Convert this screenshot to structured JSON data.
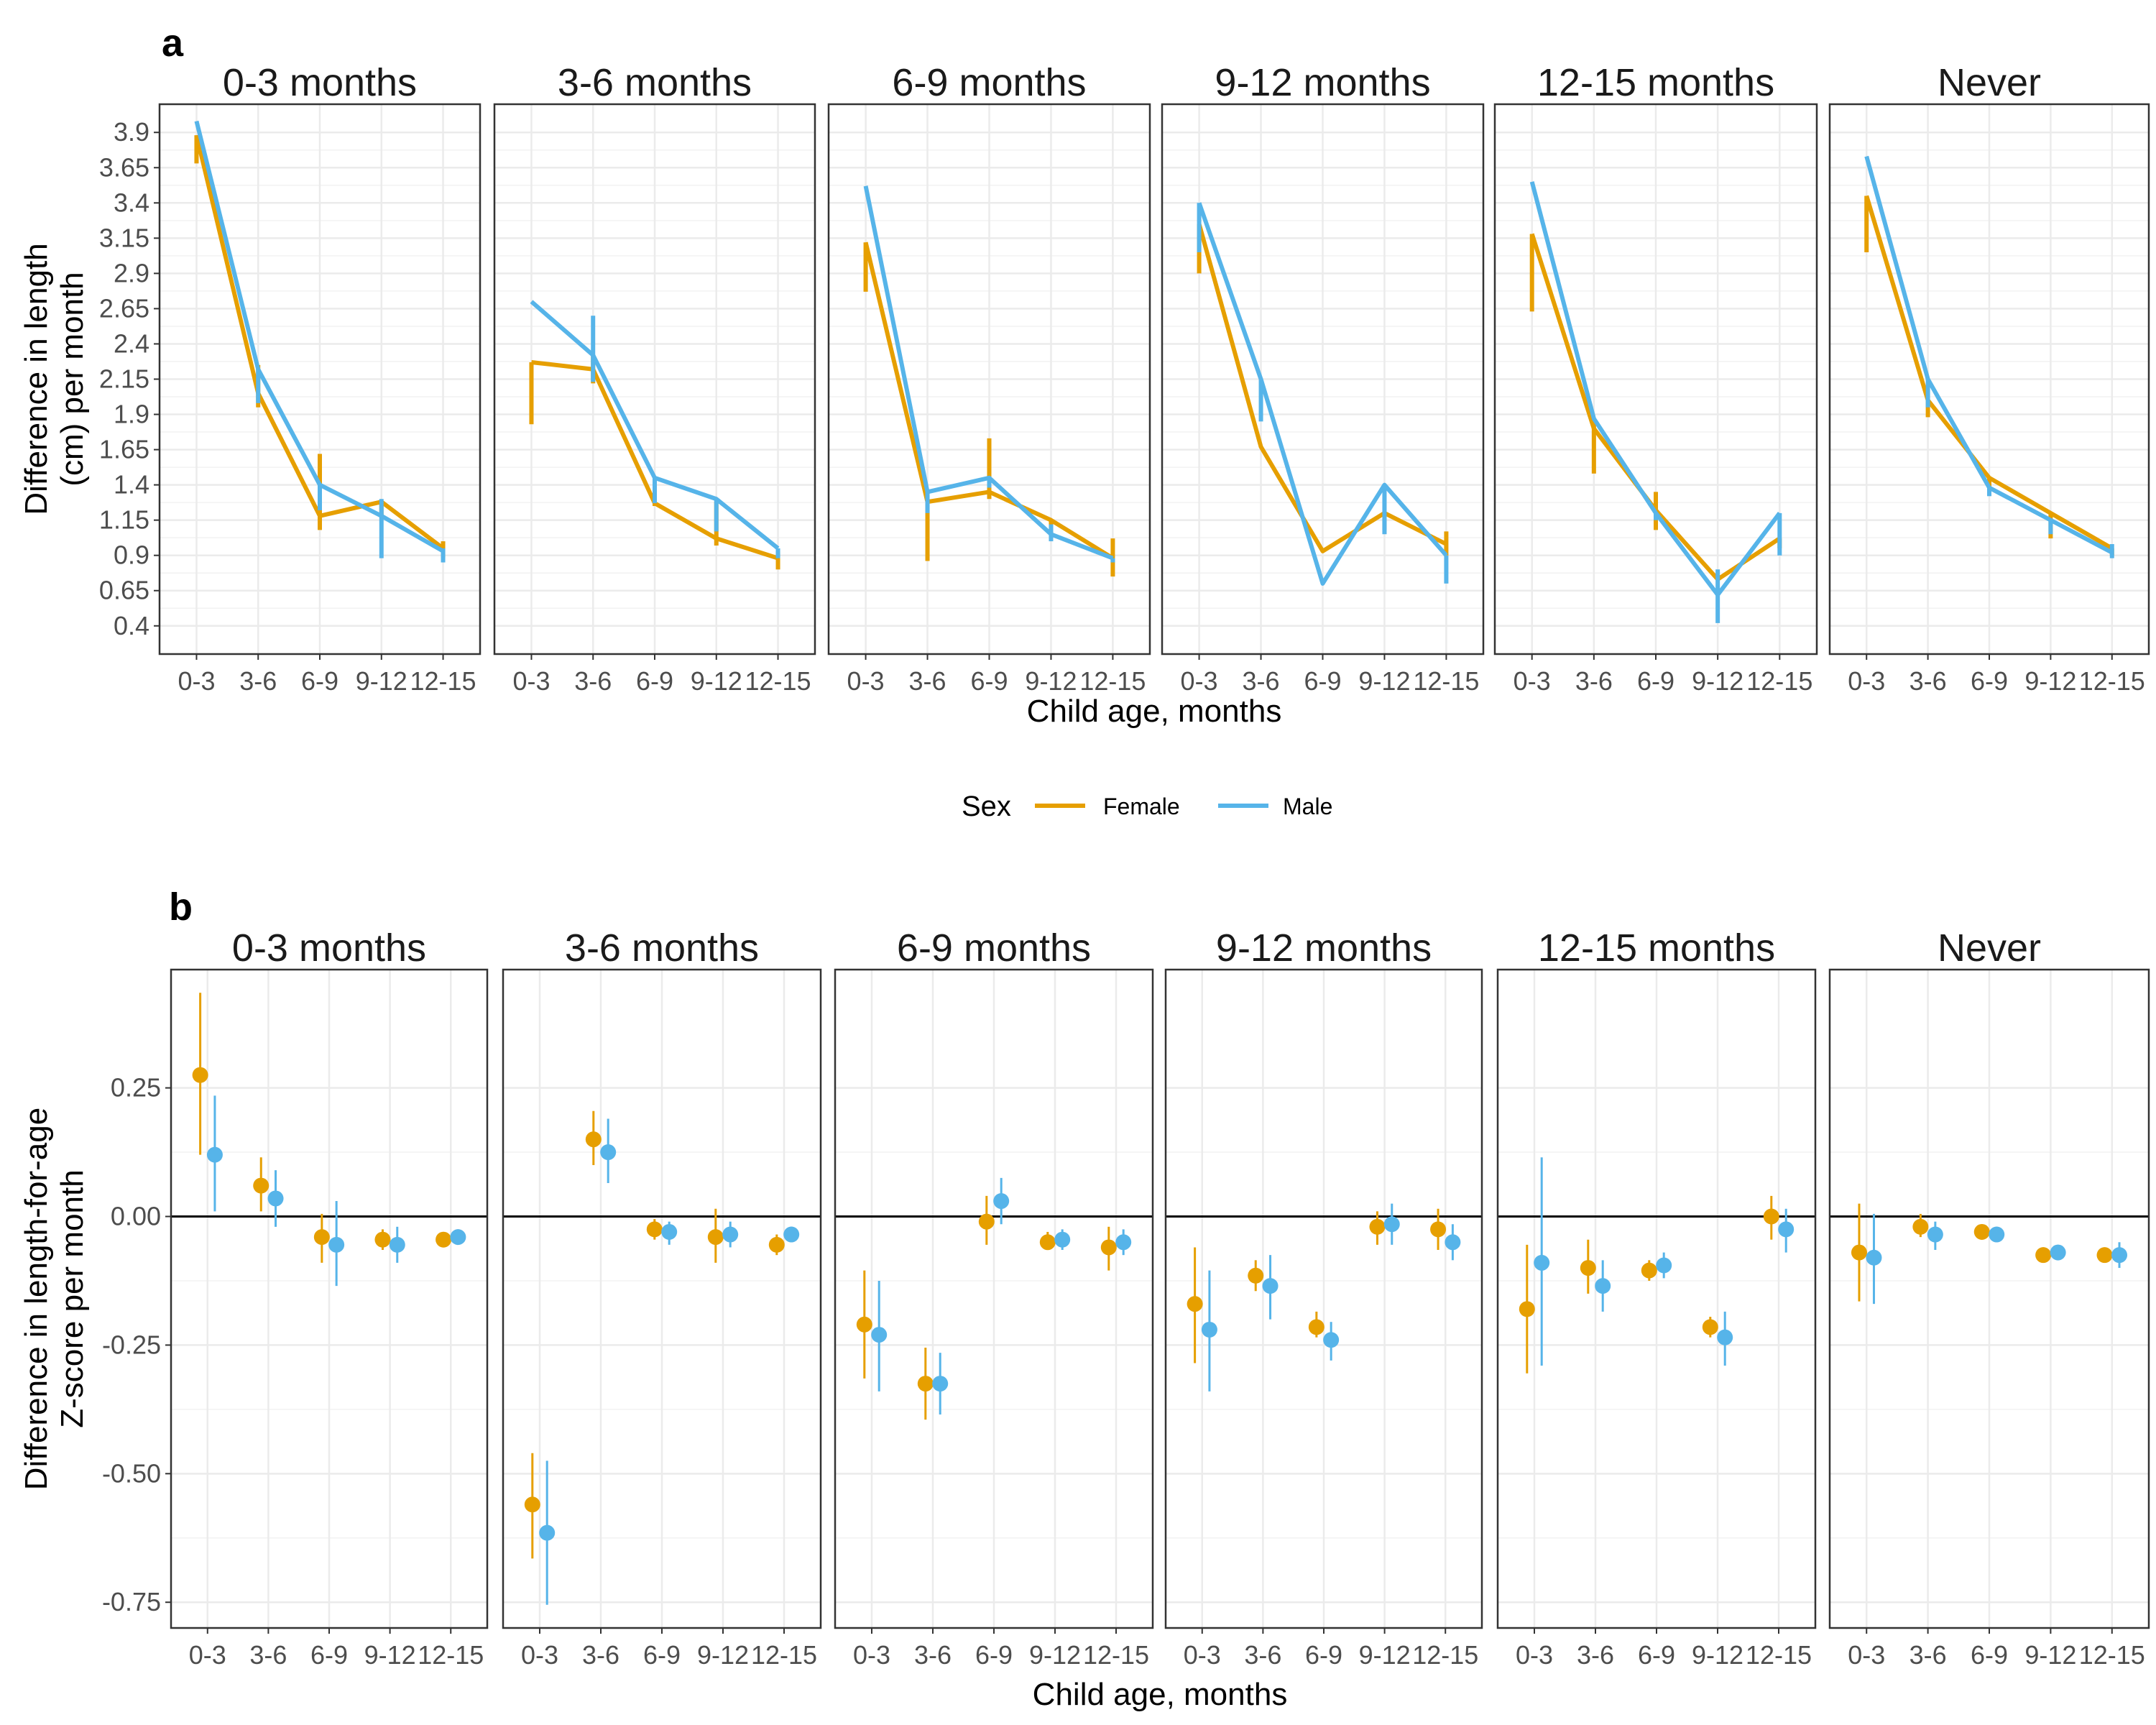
{
  "colors": {
    "Female": "#E69F00",
    "Male": "#56B4E9"
  },
  "legend": {
    "title": "Sex",
    "position": "between-panels",
    "entries": [
      "Female",
      "Male"
    ]
  },
  "chart_data": [
    {
      "panel_label": "a",
      "type": "line",
      "facets": [
        "0-3 months",
        "3-6 months",
        "6-9 months",
        "9-12 months",
        "12-15 months",
        "Never"
      ],
      "categories": [
        "0-3",
        "3-6",
        "6-9",
        "9-12",
        "12-15"
      ],
      "xlabel": "Child age, months",
      "ylabel": [
        "Difference in length",
        "(cm) per month"
      ],
      "yticks": [
        "0.4",
        "0.65",
        "0.9",
        "1.15",
        "1.4",
        "1.65",
        "1.9",
        "2.15",
        "2.4",
        "2.65",
        "2.9",
        "3.15",
        "3.4",
        "3.65",
        "3.9"
      ],
      "ylim": [
        0.2,
        4.1
      ],
      "grid": true,
      "series": [
        {
          "name": "Female",
          "panels": [
            {
              "values": [
                3.88,
                2.05,
                1.18,
                1.28,
                0.95
              ],
              "lower": [
                3.68,
                1.95,
                1.08,
                1.18,
                0.88
              ],
              "upper": [
                3.88,
                2.25,
                1.62,
                1.28,
                1.0
              ]
            },
            {
              "values": [
                2.27,
                2.22,
                1.27,
                1.02,
                0.88
              ],
              "lower": [
                1.83,
                2.12,
                1.25,
                0.97,
                0.8
              ],
              "upper": [
                2.27,
                2.32,
                1.3,
                1.28,
                0.93
              ]
            },
            {
              "values": [
                3.12,
                1.28,
                1.35,
                1.15,
                0.88
              ],
              "lower": [
                2.77,
                0.86,
                1.3,
                1.05,
                0.75
              ],
              "upper": [
                3.12,
                1.28,
                1.73,
                1.15,
                1.02
              ]
            },
            {
              "values": [
                3.25,
                1.67,
                0.93,
                1.2,
                0.98
              ],
              "lower": [
                2.9,
                1.67,
                0.93,
                1.08,
                0.9
              ],
              "upper": [
                3.25,
                1.67,
                0.93,
                1.2,
                1.07
              ]
            },
            {
              "values": [
                3.18,
                1.8,
                1.22,
                0.73,
                1.02
              ],
              "lower": [
                2.63,
                1.48,
                1.08,
                0.73,
                0.95
              ],
              "upper": [
                3.18,
                1.85,
                1.35,
                0.73,
                1.02
              ]
            },
            {
              "values": [
                3.45,
                2.0,
                1.45,
                1.2,
                0.95
              ],
              "lower": [
                3.05,
                1.88,
                1.35,
                1.02,
                0.9
              ],
              "upper": [
                3.45,
                2.0,
                1.45,
                1.2,
                0.95
              ]
            }
          ]
        },
        {
          "name": "Male",
          "panels": [
            {
              "values": [
                3.98,
                2.22,
                1.4,
                1.18,
                0.93
              ],
              "lower": [
                3.98,
                1.98,
                1.22,
                0.88,
                0.85
              ],
              "upper": [
                3.98,
                2.22,
                1.4,
                1.3,
                0.95
              ]
            },
            {
              "values": [
                2.7,
                2.32,
                1.45,
                1.3,
                0.95
              ],
              "lower": [
                2.7,
                2.13,
                1.27,
                1.07,
                0.88
              ],
              "upper": [
                2.7,
                2.6,
                1.45,
                1.3,
                0.95
              ]
            },
            {
              "values": [
                3.52,
                1.35,
                1.45,
                1.05,
                0.88
              ],
              "lower": [
                3.52,
                1.2,
                1.38,
                1.0,
                0.85
              ],
              "upper": [
                3.52,
                1.35,
                1.45,
                1.12,
                0.88
              ]
            },
            {
              "values": [
                3.4,
                2.15,
                0.7,
                1.4,
                0.9
              ],
              "lower": [
                3.05,
                1.85,
                0.7,
                1.05,
                0.7
              ],
              "upper": [
                3.4,
                2.15,
                0.7,
                1.4,
                0.9
              ]
            },
            {
              "values": [
                3.55,
                1.87,
                1.2,
                0.62,
                1.2
              ],
              "lower": [
                3.55,
                1.87,
                1.15,
                0.42,
                0.9
              ],
              "upper": [
                3.55,
                1.87,
                1.2,
                0.8,
                1.2
              ]
            },
            {
              "values": [
                3.73,
                2.15,
                1.38,
                1.15,
                0.92
              ],
              "lower": [
                3.73,
                1.95,
                1.32,
                1.05,
                0.88
              ],
              "upper": [
                3.73,
                2.15,
                1.38,
                1.15,
                0.98
              ]
            }
          ]
        }
      ]
    },
    {
      "panel_label": "b",
      "type": "scatter",
      "facets": [
        "0-3 months",
        "3-6 months",
        "6-9 months",
        "9-12 months",
        "12-15 months",
        "Never"
      ],
      "categories": [
        "0-3",
        "3-6",
        "6-9",
        "9-12",
        "12-15"
      ],
      "xlabel": "Child age, months",
      "ylabel": [
        "Difference in length-for-age",
        "Z-score per month"
      ],
      "yticks": [
        "-0.75",
        "-0.50",
        "-0.25",
        "0.00",
        "0.25"
      ],
      "ylim": [
        -0.8,
        0.48
      ],
      "reference_line": 0,
      "grid": true,
      "series": [
        {
          "name": "Female",
          "panels": [
            {
              "values": [
                0.275,
                0.06,
                -0.04,
                -0.045,
                -0.045
              ],
              "lower": [
                0.12,
                0.01,
                -0.09,
                -0.065,
                -0.06
              ],
              "upper": [
                0.435,
                0.115,
                0.005,
                -0.025,
                -0.03
              ]
            },
            {
              "values": [
                -0.56,
                0.15,
                -0.025,
                -0.04,
                -0.055
              ],
              "lower": [
                -0.665,
                0.1,
                -0.045,
                -0.09,
                -0.075
              ],
              "upper": [
                -0.46,
                0.205,
                -0.005,
                0.015,
                -0.035
              ]
            },
            {
              "values": [
                -0.21,
                -0.325,
                -0.01,
                -0.05,
                -0.06
              ],
              "lower": [
                -0.315,
                -0.395,
                -0.055,
                -0.065,
                -0.105
              ],
              "upper": [
                -0.105,
                -0.255,
                0.04,
                -0.03,
                -0.02
              ]
            },
            {
              "values": [
                -0.17,
                -0.115,
                -0.215,
                -0.02,
                -0.025
              ],
              "lower": [
                -0.285,
                -0.145,
                -0.235,
                -0.055,
                -0.065
              ],
              "upper": [
                -0.06,
                -0.085,
                -0.185,
                0.01,
                0.015
              ]
            },
            {
              "values": [
                -0.18,
                -0.1,
                -0.105,
                -0.215,
                0.0
              ],
              "lower": [
                -0.305,
                -0.15,
                -0.125,
                -0.235,
                -0.045
              ],
              "upper": [
                -0.055,
                -0.045,
                -0.085,
                -0.195,
                0.04
              ]
            },
            {
              "values": [
                -0.07,
                -0.02,
                -0.03,
                -0.075,
                -0.075
              ],
              "lower": [
                -0.165,
                -0.04,
                -0.04,
                -0.09,
                -0.085
              ],
              "upper": [
                0.025,
                0.005,
                -0.02,
                -0.06,
                -0.065
              ]
            }
          ]
        },
        {
          "name": "Male",
          "panels": [
            {
              "values": [
                0.12,
                0.035,
                -0.055,
                -0.055,
                -0.04
              ],
              "lower": [
                0.01,
                -0.02,
                -0.135,
                -0.09,
                -0.055
              ],
              "upper": [
                0.235,
                0.09,
                0.03,
                -0.02,
                -0.025
              ]
            },
            {
              "values": [
                -0.615,
                0.125,
                -0.03,
                -0.035,
                -0.035
              ],
              "lower": [
                -0.755,
                0.065,
                -0.055,
                -0.06,
                -0.05
              ],
              "upper": [
                -0.475,
                0.19,
                -0.01,
                -0.01,
                -0.02
              ]
            },
            {
              "values": [
                -0.23,
                -0.325,
                0.03,
                -0.045,
                -0.05
              ],
              "lower": [
                -0.34,
                -0.385,
                -0.015,
                -0.065,
                -0.075
              ],
              "upper": [
                -0.125,
                -0.265,
                0.075,
                -0.025,
                -0.025
              ]
            },
            {
              "values": [
                -0.22,
                -0.135,
                -0.24,
                -0.015,
                -0.05
              ],
              "lower": [
                -0.34,
                -0.2,
                -0.28,
                -0.055,
                -0.085
              ],
              "upper": [
                -0.105,
                -0.075,
                -0.205,
                0.025,
                -0.015
              ]
            },
            {
              "values": [
                -0.09,
                -0.135,
                -0.095,
                -0.235,
                -0.025
              ],
              "lower": [
                -0.29,
                -0.185,
                -0.12,
                -0.29,
                -0.07
              ],
              "upper": [
                0.115,
                -0.085,
                -0.07,
                -0.185,
                0.015
              ]
            },
            {
              "values": [
                -0.08,
                -0.035,
                -0.035,
                -0.07,
                -0.075
              ],
              "lower": [
                -0.17,
                -0.065,
                -0.045,
                -0.085,
                -0.1
              ],
              "upper": [
                0.005,
                -0.01,
                -0.025,
                -0.055,
                -0.05
              ]
            }
          ]
        }
      ]
    }
  ]
}
